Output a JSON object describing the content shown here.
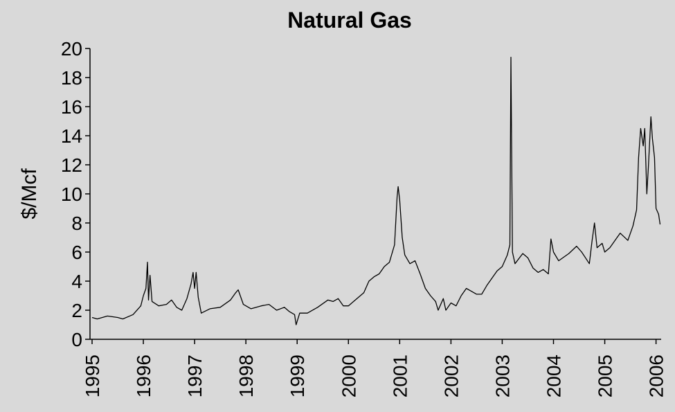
{
  "chart_data": {
    "type": "line",
    "title": "Natural Gas",
    "ylabel": "$/Mcf",
    "x": [
      1995.0,
      1995.1,
      1995.3,
      1995.5,
      1995.6,
      1995.8,
      1995.95,
      1996.0,
      1996.05,
      1996.08,
      1996.1,
      1996.13,
      1996.17,
      1996.3,
      1996.45,
      1996.55,
      1996.65,
      1996.75,
      1996.85,
      1996.93,
      1996.97,
      1997.0,
      1997.03,
      1997.07,
      1997.13,
      1997.3,
      1997.5,
      1997.7,
      1997.8,
      1997.85,
      1997.95,
      1998.1,
      1998.3,
      1998.45,
      1998.6,
      1998.75,
      1998.85,
      1998.95,
      1998.98,
      1999.05,
      1999.2,
      1999.4,
      1999.6,
      1999.7,
      1999.8,
      1999.9,
      2000.0,
      2000.1,
      2000.3,
      2000.4,
      2000.5,
      2000.6,
      2000.7,
      2000.8,
      2000.9,
      2000.95,
      2000.97,
      2001.0,
      2001.05,
      2001.1,
      2001.2,
      2001.3,
      2001.4,
      2001.5,
      2001.6,
      2001.7,
      2001.75,
      2001.85,
      2001.9,
      2002.0,
      2002.1,
      2002.2,
      2002.3,
      2002.4,
      2002.5,
      2002.6,
      2002.7,
      2002.8,
      2002.9,
      2003.0,
      2003.1,
      2003.15,
      2003.17,
      2003.2,
      2003.25,
      2003.4,
      2003.5,
      2003.6,
      2003.7,
      2003.8,
      2003.9,
      2003.95,
      2004.0,
      2004.1,
      2004.3,
      2004.45,
      2004.55,
      2004.7,
      2004.75,
      2004.8,
      2004.85,
      2004.95,
      2005.0,
      2005.1,
      2005.3,
      2005.45,
      2005.55,
      2005.62,
      2005.66,
      2005.7,
      2005.75,
      2005.78,
      2005.82,
      2005.85,
      2005.9,
      2005.93,
      2005.97,
      2006.0,
      2006.05,
      2006.08
    ],
    "series": [
      {
        "color": "#000000",
        "values": [
          1.5,
          1.4,
          1.6,
          1.5,
          1.4,
          1.7,
          2.3,
          3.0,
          3.5,
          5.3,
          2.7,
          4.4,
          2.6,
          2.3,
          2.4,
          2.7,
          2.2,
          2.0,
          2.8,
          3.8,
          4.6,
          3.5,
          4.6,
          2.9,
          1.8,
          2.1,
          2.2,
          2.7,
          3.2,
          3.4,
          2.4,
          2.1,
          2.3,
          2.4,
          2.0,
          2.2,
          1.9,
          1.7,
          1.0,
          1.8,
          1.8,
          2.2,
          2.7,
          2.6,
          2.8,
          2.3,
          2.3,
          2.6,
          3.2,
          4.0,
          4.3,
          4.5,
          5.0,
          5.3,
          6.5,
          9.8,
          10.5,
          9.6,
          7.0,
          5.8,
          5.2,
          5.4,
          4.5,
          3.5,
          3.0,
          2.6,
          2.0,
          2.8,
          2.0,
          2.5,
          2.3,
          3.0,
          3.5,
          3.3,
          3.1,
          3.1,
          3.7,
          4.2,
          4.7,
          5.0,
          5.8,
          6.5,
          19.4,
          6.0,
          5.2,
          5.9,
          5.6,
          4.9,
          4.6,
          4.8,
          4.5,
          6.9,
          6.0,
          5.4,
          5.9,
          6.4,
          6.0,
          5.2,
          6.7,
          8.0,
          6.3,
          6.6,
          6.0,
          6.3,
          7.3,
          6.8,
          7.8,
          8.9,
          12.5,
          14.5,
          13.3,
          14.5,
          10.0,
          11.8,
          15.3,
          13.8,
          12.5,
          9.0,
          8.6,
          7.9
        ]
      }
    ],
    "xlim": [
      1995,
      2006.1
    ],
    "xticks": [
      1995,
      1996,
      1997,
      1998,
      1999,
      2000,
      2001,
      2002,
      2003,
      2004,
      2005,
      2006
    ],
    "ylim": [
      0,
      20
    ],
    "yticks": [
      0,
      2,
      4,
      6,
      8,
      10,
      12,
      14,
      16,
      18,
      20
    ]
  }
}
